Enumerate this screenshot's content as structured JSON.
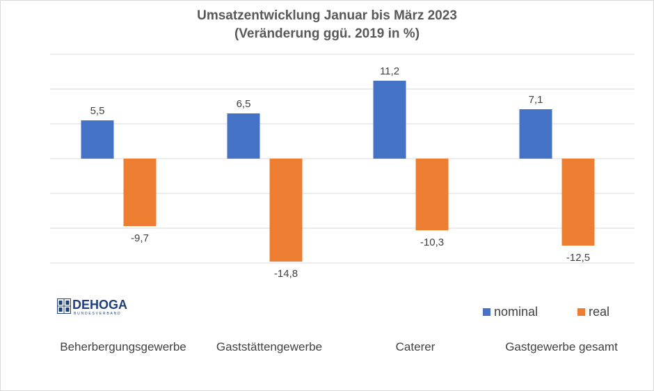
{
  "chart_data": {
    "type": "bar",
    "title": "Umsatzentwicklung Januar bis März 2023",
    "subtitle": "(Veränderung ggü. 2019 in %)",
    "categories": [
      "Beherbergungsgewerbe",
      "Gaststättengewerbe",
      "Caterer",
      "Gastgewerbe gesamt"
    ],
    "series": [
      {
        "name": "nominal",
        "values": [
          5.5,
          6.5,
          11.2,
          7.1
        ],
        "labels": [
          "5,5",
          "6,5",
          "11,2",
          "7,1"
        ],
        "color": "#4472c4"
      },
      {
        "name": "real",
        "values": [
          -9.7,
          -14.8,
          -10.3,
          -12.5
        ],
        "labels": [
          "-9,7",
          "-14,8",
          "-10,3",
          "-12,5"
        ],
        "color": "#ed7d31"
      }
    ],
    "ylim": [
      -15,
      15
    ],
    "grid": true,
    "legend_position": "bottom-right",
    "gridline_color": "#d9d9d9"
  },
  "logo": {
    "name": "DEHOGA",
    "subtitle": "BUNDESVERBAND"
  }
}
